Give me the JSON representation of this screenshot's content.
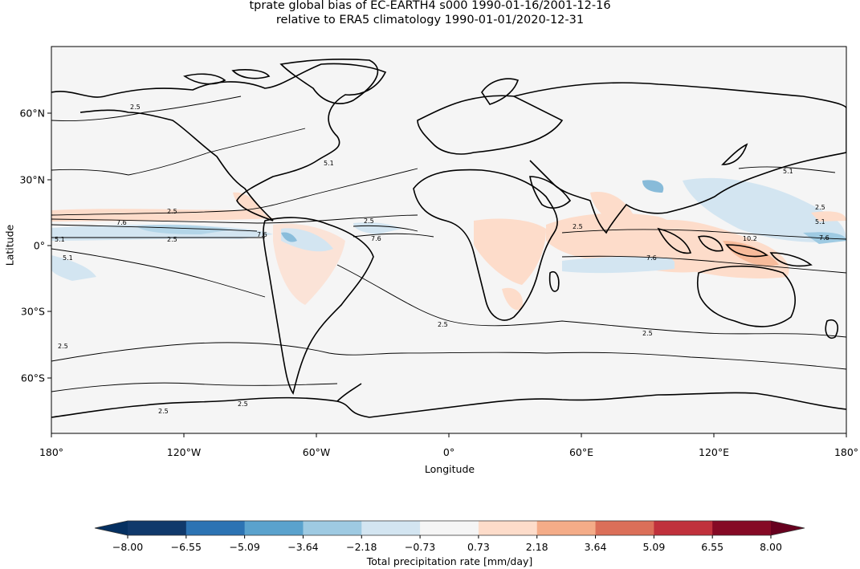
{
  "title": {
    "line1": "tprate global bias of EC-EARTH4 s000 1990-01-16/2001-12-16",
    "line2": "relative to ERA5 climatology 1990-01-01/2020-12-31"
  },
  "axes": {
    "xlabel": "Longitude",
    "ylabel": "Latitude",
    "xticks": [
      "180°",
      "120°W",
      "60°W",
      "0°",
      "60°E",
      "120°E",
      "180°"
    ],
    "yticks": [
      "60°N",
      "30°N",
      "0°",
      "30°S",
      "60°S"
    ]
  },
  "colorbar": {
    "label": "Total precipitation rate [mm/day]",
    "ticks": [
      "−8.00",
      "−6.55",
      "−5.09",
      "−3.64",
      "−2.18",
      "−0.73",
      "0.73",
      "2.18",
      "3.64",
      "5.09",
      "6.55",
      "8.00"
    ],
    "colors": [
      "#10396b",
      "#2c73b3",
      "#5aa2cd",
      "#9ecae2",
      "#d3e5f1",
      "#f5f5f5",
      "#fddcca",
      "#f4ac88",
      "#db6f59",
      "#c0313c",
      "#850a25"
    ],
    "under_color": "#053061",
    "over_color": "#67001f",
    "extend": "both"
  },
  "contour_labels": [
    "2.5",
    "5.1",
    "7.6",
    "10.2"
  ],
  "chart_data": {
    "type": "heatmap",
    "title": "tprate global bias of EC-EARTH4 s000 1990-01-16/2001-12-16 relative to ERA5 climatology 1990-01-01/2020-12-31",
    "xlabel": "Longitude",
    "ylabel": "Latitude",
    "xlim": [
      -180,
      180
    ],
    "ylim": [
      -90,
      90
    ],
    "xticks": [
      -180,
      -120,
      -60,
      0,
      60,
      120,
      180
    ],
    "yticks": [
      60,
      30,
      0,
      -30,
      -60
    ],
    "colorbar_label": "Total precipitation rate [mm/day]",
    "levels": [
      -8.0,
      -6.55,
      -5.09,
      -3.64,
      -2.18,
      -0.73,
      0.73,
      2.18,
      3.64,
      5.09,
      6.55,
      8.0
    ],
    "cmap": "RdBu_r",
    "contour_levels_climatology": [
      2.5,
      5.1,
      7.6,
      10.2
    ],
    "notable_features": [
      {
        "region": "Tropical Pacific north of equator (~10°N)",
        "bias": "positive (0.73 to 2.18)"
      },
      {
        "region": "Equatorial Pacific ITCZ (~5°N)",
        "bias": "negative (-2.18 to -0.73)"
      },
      {
        "region": "Indian Ocean south of equator",
        "bias": "positive (0.73 to 2.18)"
      },
      {
        "region": "Maritime Continent / Indonesia",
        "bias": "positive, locally higher"
      },
      {
        "region": "Western North Pacific",
        "bias": "negative (-2.18 to -0.73)"
      },
      {
        "region": "Central Africa",
        "bias": "positive (0.73 to 2.18)"
      },
      {
        "region": "Amazon / northern South America",
        "bias": "mixed, locally negative"
      }
    ]
  }
}
